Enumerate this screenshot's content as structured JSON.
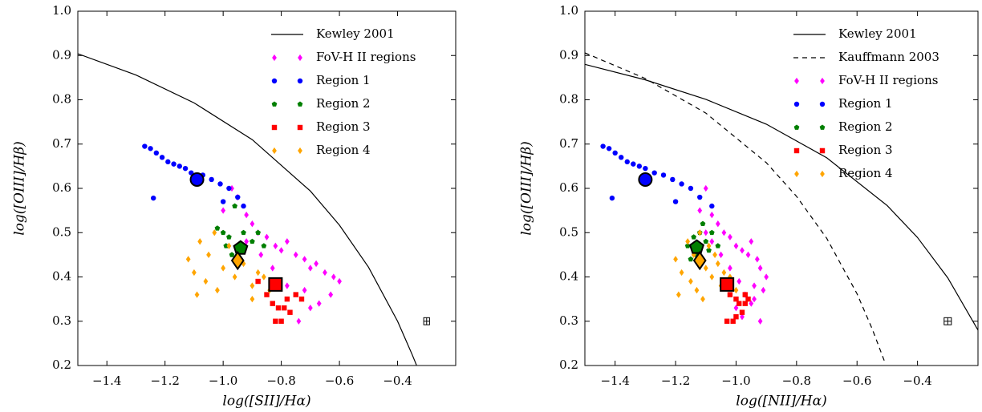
{
  "chart_data": [
    {
      "type": "scatter",
      "xlabel": "log([SII]/Hα)",
      "ylabel": "log([OIII]/Hβ)",
      "xlim": [
        -1.5,
        -0.2
      ],
      "ylim": [
        0.2,
        1.0
      ],
      "xticks": [
        {
          "value": -1.4,
          "label": "−1.4"
        },
        {
          "value": -1.2,
          "label": "−1.2"
        },
        {
          "value": -1.0,
          "label": "−1.0"
        },
        {
          "value": -0.8,
          "label": "−0.8"
        },
        {
          "value": -0.6,
          "label": "−0.6"
        },
        {
          "value": -0.4,
          "label": "−0.4"
        }
      ],
      "yticks": [
        0.2,
        0.3,
        0.4,
        0.5,
        0.6,
        0.7,
        0.8,
        0.9,
        {
          "value": 1.0,
          "label": "1.0"
        }
      ],
      "legend": "upper right",
      "series": [
        {
          "name": "Kewley 2001",
          "style": "solid",
          "color": "#000000",
          "x": [
            -1.5,
            -1.3,
            -1.1,
            -0.9,
            -0.7,
            -0.6,
            -0.5,
            -0.4,
            -0.35,
            -0.335
          ],
          "y": [
            0.904,
            0.856,
            0.793,
            0.71,
            0.594,
            0.517,
            0.422,
            0.3,
            0.225,
            0.201
          ]
        },
        {
          "name": "FoV-H II regions",
          "marker": "diamond",
          "color": "#ff00ff",
          "x": [
            -1.0,
            -0.97,
            -0.95,
            -0.92,
            -0.9,
            -0.88,
            -0.85,
            -0.82,
            -0.8,
            -0.78,
            -0.75,
            -0.72,
            -0.7,
            -0.68,
            -0.65,
            -0.62,
            -0.6,
            -0.63,
            -0.7,
            -0.74,
            -0.78,
            -0.83,
            -0.87,
            -0.92,
            -0.67,
            -0.72
          ],
          "y": [
            0.55,
            0.6,
            0.58,
            0.54,
            0.52,
            0.5,
            0.49,
            0.47,
            0.46,
            0.48,
            0.45,
            0.44,
            0.42,
            0.43,
            0.41,
            0.4,
            0.39,
            0.36,
            0.33,
            0.3,
            0.38,
            0.42,
            0.45,
            0.48,
            0.34,
            0.37
          ]
        },
        {
          "name": "Region 1",
          "marker": "circle",
          "color": "#0000ff",
          "x": [
            -1.27,
            -1.25,
            -1.23,
            -1.21,
            -1.19,
            -1.17,
            -1.15,
            -1.13,
            -1.11,
            -1.07,
            -1.04,
            -1.01,
            -0.98,
            -0.95,
            -0.93,
            -1.24,
            -1.0
          ],
          "y": [
            0.695,
            0.69,
            0.68,
            0.67,
            0.66,
            0.655,
            0.65,
            0.645,
            0.635,
            0.63,
            0.62,
            0.61,
            0.6,
            0.58,
            0.56,
            0.578,
            0.57
          ]
        },
        {
          "name": "Region 2",
          "marker": "pentagon",
          "color": "#007f00",
          "x": [
            -1.02,
            -1.0,
            -0.98,
            -0.96,
            -0.93,
            -0.9,
            -0.88,
            -0.86,
            -0.97,
            -0.99
          ],
          "y": [
            0.51,
            0.5,
            0.49,
            0.56,
            0.5,
            0.48,
            0.5,
            0.47,
            0.45,
            0.47
          ]
        },
        {
          "name": "Region 3",
          "marker": "square",
          "color": "#ff0000",
          "x": [
            -0.85,
            -0.83,
            -0.81,
            -0.8,
            -0.78,
            -0.77,
            -0.75,
            -0.73,
            -0.82,
            -0.79,
            -0.88
          ],
          "y": [
            0.36,
            0.34,
            0.33,
            0.3,
            0.35,
            0.32,
            0.36,
            0.35,
            0.3,
            0.33,
            0.39
          ]
        },
        {
          "name": "Region 4",
          "marker": "diamond",
          "color": "#ffa500",
          "x": [
            -1.12,
            -1.1,
            -1.08,
            -1.06,
            -1.05,
            -1.03,
            -1.0,
            -0.98,
            -0.96,
            -0.93,
            -0.9,
            -0.88,
            -0.86,
            -0.84,
            -1.09,
            -1.02,
            -0.95,
            -0.9
          ],
          "y": [
            0.44,
            0.41,
            0.48,
            0.39,
            0.45,
            0.5,
            0.42,
            0.47,
            0.4,
            0.43,
            0.38,
            0.41,
            0.4,
            0.37,
            0.36,
            0.37,
            0.45,
            0.35
          ]
        }
      ],
      "means": [
        {
          "x": -1.09,
          "y": 0.62,
          "marker": "circle",
          "color": "#0000ff"
        },
        {
          "x": -0.94,
          "y": 0.465,
          "marker": "pentagon",
          "color": "#007f00"
        },
        {
          "x": -0.95,
          "y": 0.437,
          "marker": "diamond",
          "color": "#ffa500"
        },
        {
          "x": -0.82,
          "y": 0.383,
          "marker": "square",
          "color": "#ff0000"
        }
      ],
      "error_bar": {
        "x": -0.3,
        "y": 0.3,
        "xerr": 0.01,
        "yerr": 0.008
      }
    },
    {
      "type": "scatter",
      "xlabel": "log([NII]/Hα)",
      "ylabel": "log([OIII]/Hβ)",
      "xlim": [
        -1.5,
        -0.2
      ],
      "ylim": [
        0.2,
        1.0
      ],
      "xticks": [
        {
          "value": -1.4,
          "label": "−1.4"
        },
        {
          "value": -1.2,
          "label": "−1.2"
        },
        {
          "value": -1.0,
          "label": "−1.0"
        },
        {
          "value": -0.8,
          "label": "−0.8"
        },
        {
          "value": -0.6,
          "label": "−0.6"
        },
        {
          "value": -0.4,
          "label": "−0.4"
        }
      ],
      "yticks": [
        0.2,
        0.3,
        0.4,
        0.5,
        0.6,
        0.7,
        0.8,
        0.9,
        {
          "value": 1.0,
          "label": "1.0"
        }
      ],
      "legend": "upper right",
      "series": [
        {
          "name": "Kewley 2001",
          "style": "solid",
          "color": "#000000",
          "x": [
            -1.5,
            -1.3,
            -1.1,
            -0.9,
            -0.7,
            -0.5,
            -0.4,
            -0.3,
            -0.2
          ],
          "y": [
            0.88,
            0.845,
            0.801,
            0.745,
            0.669,
            0.561,
            0.489,
            0.398,
            0.28
          ]
        },
        {
          "name": "Kauffmann 2003",
          "style": "dashed",
          "color": "#000000",
          "x": [
            -1.5,
            -1.3,
            -1.1,
            -0.9,
            -0.8,
            -0.7,
            -0.6,
            -0.55,
            -0.51
          ],
          "y": [
            0.906,
            0.848,
            0.77,
            0.658,
            0.582,
            0.487,
            0.362,
            0.283,
            0.211
          ]
        },
        {
          "name": "FoV-H II regions",
          "marker": "diamond",
          "color": "#ff00ff",
          "x": [
            -1.12,
            -1.1,
            -1.08,
            -1.06,
            -1.04,
            -1.02,
            -1.0,
            -0.98,
            -0.96,
            -0.95,
            -0.93,
            -0.92,
            -0.9,
            -0.94,
            -0.97,
            -1.0,
            -0.98,
            -0.95,
            -0.92,
            -1.05,
            -1.08,
            -1.1,
            -0.99,
            -1.02,
            -0.94,
            -0.91
          ],
          "y": [
            0.55,
            0.6,
            0.54,
            0.52,
            0.5,
            0.49,
            0.47,
            0.46,
            0.45,
            0.48,
            0.44,
            0.42,
            0.4,
            0.38,
            0.36,
            0.33,
            0.31,
            0.34,
            0.3,
            0.45,
            0.48,
            0.5,
            0.39,
            0.42,
            0.35,
            0.37
          ]
        },
        {
          "name": "Region 1",
          "marker": "circle",
          "color": "#0000ff",
          "x": [
            -1.44,
            -1.42,
            -1.4,
            -1.38,
            -1.36,
            -1.34,
            -1.32,
            -1.3,
            -1.27,
            -1.24,
            -1.21,
            -1.18,
            -1.15,
            -1.12,
            -1.08,
            -1.41,
            -1.2
          ],
          "y": [
            0.695,
            0.69,
            0.68,
            0.67,
            0.66,
            0.655,
            0.65,
            0.645,
            0.635,
            0.63,
            0.62,
            0.61,
            0.6,
            0.58,
            0.56,
            0.578,
            0.57
          ]
        },
        {
          "name": "Region 2",
          "marker": "pentagon",
          "color": "#007f00",
          "x": [
            -1.16,
            -1.14,
            -1.12,
            -1.1,
            -1.08,
            -1.06,
            -1.13,
            -1.09,
            -1.15,
            -1.11
          ],
          "y": [
            0.47,
            0.49,
            0.5,
            0.48,
            0.5,
            0.47,
            0.45,
            0.46,
            0.44,
            0.52
          ]
        },
        {
          "name": "Region 3",
          "marker": "square",
          "color": "#ff0000",
          "x": [
            -1.02,
            -1.0,
            -0.99,
            -0.97,
            -0.96,
            -0.98,
            -1.01,
            -1.03,
            -1.0,
            -0.97,
            -1.04
          ],
          "y": [
            0.36,
            0.35,
            0.34,
            0.36,
            0.35,
            0.32,
            0.3,
            0.3,
            0.31,
            0.34,
            0.38
          ]
        },
        {
          "name": "Region 4",
          "marker": "diamond",
          "color": "#ffa500",
          "x": [
            -1.2,
            -1.18,
            -1.16,
            -1.15,
            -1.14,
            -1.12,
            -1.1,
            -1.09,
            -1.08,
            -1.06,
            -1.05,
            -1.04,
            -1.02,
            -1.0,
            -1.19,
            -1.13,
            -1.07,
            -1.11
          ],
          "y": [
            0.44,
            0.41,
            0.48,
            0.39,
            0.45,
            0.5,
            0.42,
            0.47,
            0.4,
            0.43,
            0.38,
            0.41,
            0.4,
            0.37,
            0.36,
            0.37,
            0.45,
            0.35
          ]
        }
      ],
      "means": [
        {
          "x": -1.3,
          "y": 0.62,
          "marker": "circle",
          "color": "#0000ff"
        },
        {
          "x": -1.13,
          "y": 0.467,
          "marker": "pentagon",
          "color": "#007f00"
        },
        {
          "x": -1.12,
          "y": 0.437,
          "marker": "diamond",
          "color": "#ffa500"
        },
        {
          "x": -1.03,
          "y": 0.383,
          "marker": "square",
          "color": "#ff0000"
        }
      ],
      "error_bar": {
        "x": -0.3,
        "y": 0.3,
        "xerr": 0.012,
        "yerr": 0.008
      }
    }
  ]
}
